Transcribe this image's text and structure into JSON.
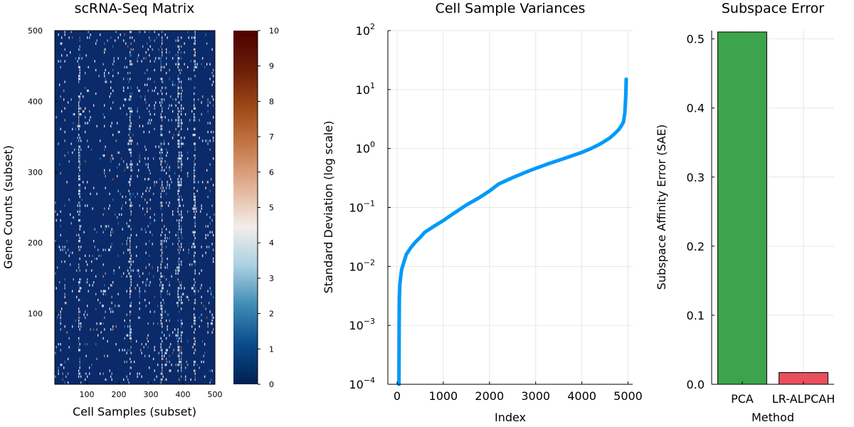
{
  "colors": {
    "line": "#009af9",
    "bar_pca": "#3da44d",
    "bar_lr_alpcah": "#e8505b",
    "heatmap_background": "#0a2a6a",
    "colormap": [
      "#002051",
      "#0a4a8a",
      "#3d8ab5",
      "#a9cfe0",
      "#f2eeea",
      "#e2b398",
      "#c77c4d",
      "#a04a17",
      "#6b1e07",
      "#4d0000"
    ]
  },
  "chart_data": [
    {
      "type": "heatmap",
      "title": "scRNA-Seq Matrix",
      "xlabel": "Cell Samples (subset)",
      "ylabel": "Gene Counts (subset)",
      "xlim": [
        0,
        500
      ],
      "ylim": [
        0,
        500
      ],
      "xticks": [
        "100",
        "200",
        "300",
        "400",
        "500"
      ],
      "yticks": [
        "100",
        "200",
        "300",
        "400",
        "500"
      ],
      "colorbar": {
        "range": [
          0,
          10
        ],
        "ticks": [
          "0",
          "1",
          "2",
          "3",
          "4",
          "5",
          "6",
          "7",
          "8",
          "9",
          "10"
        ]
      },
      "grid": false
    },
    {
      "type": "line",
      "title": "Cell Sample Variances",
      "xlabel": "Index",
      "ylabel": "Standard Deviation (log scale)",
      "xlim": [
        -200,
        5100
      ],
      "ylim": [
        0.0001,
        100
      ],
      "yscale": "log",
      "xticks": [
        "0",
        "1000",
        "2000",
        "3000",
        "4000",
        "5000"
      ],
      "yticks": [
        {
          "base": "10",
          "exp": "−4"
        },
        {
          "base": "10",
          "exp": "−3"
        },
        {
          "base": "10",
          "exp": "−2"
        },
        {
          "base": "10",
          "exp": "−1"
        },
        {
          "base": "10",
          "exp": "0"
        },
        {
          "base": "10",
          "exp": "1"
        },
        {
          "base": "10",
          "exp": "2"
        }
      ],
      "grid": true,
      "series": [
        {
          "x": [
            40,
            45,
            50,
            60,
            80,
            100,
            150,
            200,
            300,
            400,
            500,
            600,
            800,
            1000,
            1200,
            1500,
            1800,
            2000,
            2200,
            2500,
            2800,
            3000,
            3300,
            3600,
            4000,
            4200,
            4400,
            4600,
            4700,
            4800,
            4850,
            4900,
            4930,
            4950,
            4960
          ],
          "y": [
            0.0001,
            0.001,
            0.003,
            0.005,
            0.007,
            0.009,
            0.012,
            0.016,
            0.021,
            0.026,
            0.031,
            0.038,
            0.048,
            0.06,
            0.077,
            0.11,
            0.15,
            0.19,
            0.25,
            0.32,
            0.4,
            0.46,
            0.56,
            0.67,
            0.86,
            1.0,
            1.2,
            1.5,
            1.75,
            2.1,
            2.4,
            2.8,
            4.0,
            8.0,
            15.0
          ]
        }
      ]
    },
    {
      "type": "bar",
      "title": "Subspace Error",
      "xlabel": "Method",
      "ylabel": "Subspace Affinity Error (SAE)",
      "ylim": [
        0,
        0.512
      ],
      "yticks": [
        "0.0",
        "0.1",
        "0.2",
        "0.3",
        "0.4",
        "0.5"
      ],
      "grid": true,
      "categories": [
        "PCA",
        "LR-ALPCAH"
      ],
      "values": [
        0.51,
        0.017
      ]
    }
  ]
}
